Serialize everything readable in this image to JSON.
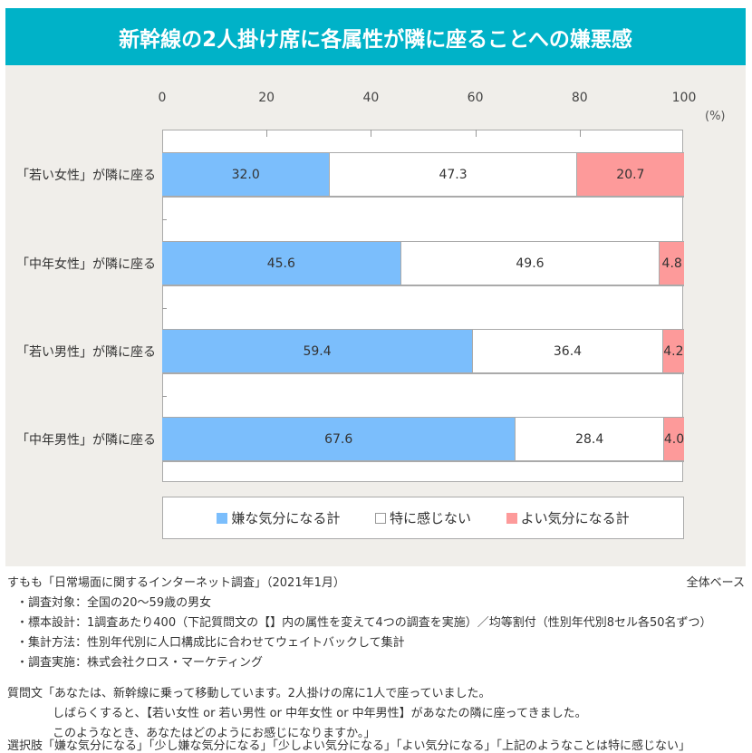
{
  "title": "新幹線の2人掛け席に各属性が隣に座ることへの嫌悪感",
  "chart_data": {
    "type": "bar",
    "stacked": true,
    "orientation": "horizontal",
    "title": "新幹線の2人掛け席に各属性が隣に座ることへの嫌悪感",
    "xlim": [
      0,
      100
    ],
    "x_ticks": [
      "0",
      "20",
      "40",
      "60",
      "80",
      "100"
    ],
    "x_unit": "(%)",
    "categories": [
      "「若い女性」が隣に座る",
      "「中年女性」が隣に座る",
      "「若い男性」が隣に座る",
      "「中年男性」が隣に座る"
    ],
    "series": [
      {
        "name": "嫌な気分になる計",
        "color": "#7bbefc",
        "values": [
          32.0,
          45.6,
          59.4,
          67.6
        ]
      },
      {
        "name": "特に感じない",
        "color": "#ffffff",
        "values": [
          47.3,
          49.6,
          36.4,
          28.4
        ]
      },
      {
        "name": "よい気分になる計",
        "color": "#fd9a9a",
        "values": [
          20.7,
          4.8,
          4.2,
          4.0
        ]
      }
    ],
    "legend_position": "bottom"
  },
  "notes": {
    "source": "すもも「日常場面に関するインターネット調査」（2021年1月）",
    "base": "全体ベース",
    "lines": [
      "・調査対象：全国の20～59歳の男女",
      "・標本設計：1調査あたり400（下記質問文の【】内の属性を変えて4つの調査を実施）／均等割付（性別年代別8セル各50名ずつ）",
      "・集計方法：性別年代別に人口構成比に合わせてウェイトバックして集計",
      "・調査実施：株式会社クロス・マーケティング"
    ],
    "question": [
      "質問文「あなたは、新幹線に乗って移動しています。2人掛けの席に1人で座っていました。",
      "しばらくすると、【若い女性 or 若い男性 or 中年女性 or 中年男性】があなたの隣に座ってきました。",
      "このようなとき、あなたはどのようにお感じになりますか。」"
    ],
    "choices": "選択肢「嫌な気分になる」「少し嫌な気分になる」「少しよい気分になる」「よい気分になる」「上記のようなことは特に感じない」"
  }
}
